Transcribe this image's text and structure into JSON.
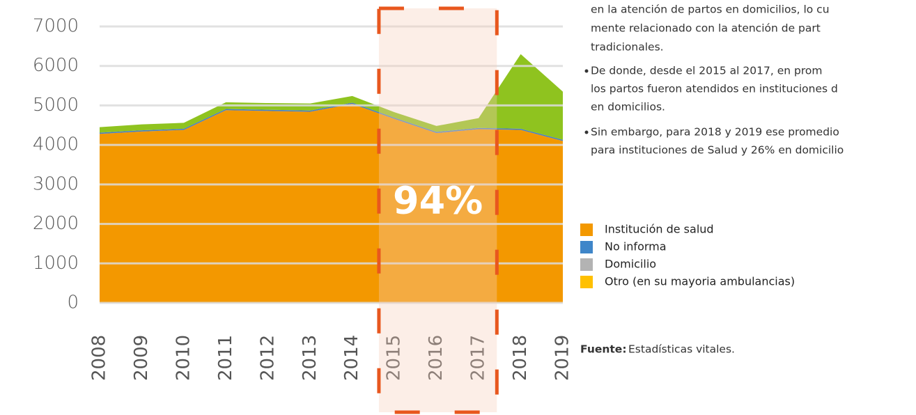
{
  "chart_data": {
    "type": "stacked-area",
    "categories": [
      "2008",
      "2009",
      "2010",
      "2011",
      "2012",
      "2013",
      "2014",
      "2015",
      "2016",
      "2017",
      "2018",
      "2019"
    ],
    "series": [
      {
        "name": "Institución de salud",
        "color": "#f39800",
        "legend_color": "#f39800",
        "values": [
          4280,
          4340,
          4380,
          4880,
          4860,
          4840,
          5040,
          4660,
          4300,
          4400,
          4380,
          4100
        ]
      },
      {
        "name": "No informa",
        "color": "#4a7fc1",
        "legend_color": "#3f86c9",
        "values": [
          30,
          30,
          30,
          30,
          30,
          30,
          30,
          30,
          30,
          30,
          30,
          30
        ]
      },
      {
        "name": "Domicilio",
        "color": "#8fc31f",
        "legend_color": "#b3b3b3",
        "values": [
          140,
          150,
          150,
          170,
          170,
          180,
          170,
          140,
          150,
          250,
          1890,
          1220
        ]
      },
      {
        "name": "Otro (en su mayoria ambulancias)",
        "color": "#ffc000",
        "legend_color": "#ffc000",
        "values": [
          0,
          0,
          0,
          0,
          0,
          0,
          0,
          0,
          0,
          0,
          0,
          0
        ]
      }
    ],
    "ylim": [
      0,
      7000
    ],
    "yticks": [
      0,
      1000,
      2000,
      3000,
      4000,
      5000,
      6000,
      7000
    ],
    "grid": true,
    "highlight": {
      "from": "2015",
      "to": "2017",
      "label": "94%"
    }
  },
  "text": {
    "paragraph": [
      "en la atención de partos en domicilios, lo cu",
      "mente relacionado con la atención de part",
      "tradicionales."
    ],
    "bullets": [
      [
        "De donde, desde el 2015 al 2017, en prom",
        "los partos fueron atendidos en instituciones d",
        "en domicilios."
      ],
      [
        "Sin embargo, para 2018 y 2019 ese promedio",
        "para instituciones de Salud y 26% en domicilio"
      ]
    ],
    "source_label": "Fuente:",
    "source": "Estadísticas vitales."
  }
}
